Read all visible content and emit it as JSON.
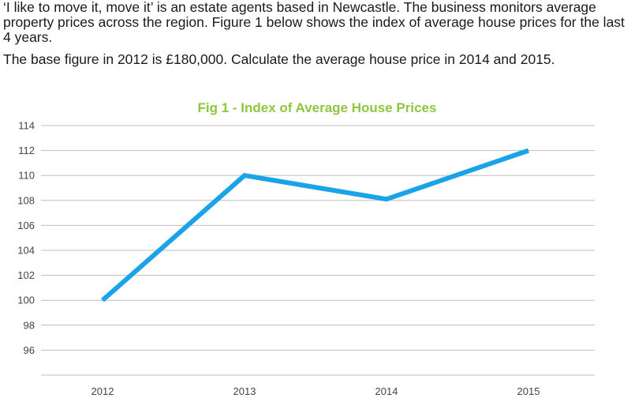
{
  "question": {
    "paragraph1": "‘I like to move it, move it’ is an estate agents based in Newcastle. The business monitors average property prices across the region. Figure 1 below shows the index of average house prices for the last 4 years.",
    "paragraph2": "The base figure in 2012 is £180,000. Calculate the average house price in 2014 and 2015."
  },
  "chart_data": {
    "type": "line",
    "title": "Fig 1 - Index of Average House Prices",
    "xlabel": "",
    "ylabel": "",
    "categories": [
      "2012",
      "2013",
      "2014",
      "2015"
    ],
    "series": [
      {
        "values": [
          100,
          110,
          108.1,
          112
        ]
      }
    ],
    "ylim": [
      94,
      114
    ],
    "yticks": [
      96,
      98,
      100,
      102,
      104,
      106,
      108,
      110,
      112,
      114
    ],
    "grid": true,
    "legend": "none",
    "line_color": "#1aa3e8",
    "grid_color": "#bfbfbf",
    "title_color": "#8dc63f"
  }
}
